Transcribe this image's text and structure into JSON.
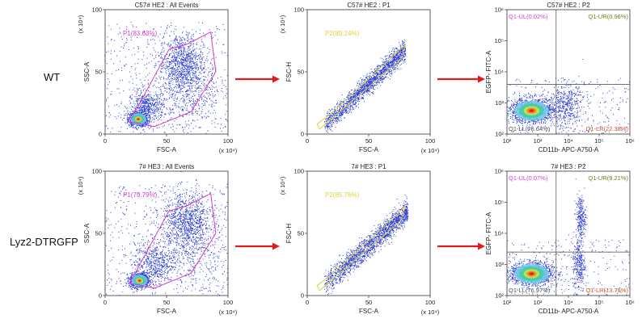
{
  "rows": [
    {
      "label": "WT",
      "panels": [
        {
          "title": "C57# HE2 : All Events",
          "xlabel": "FSC-A",
          "ylabel": "SSC-A",
          "x_unit": "(x 10⁴)",
          "y_unit": "(x 10⁴)",
          "ticks_x": [
            "0",
            "50",
            "100"
          ],
          "ticks_y": [
            "0",
            "50",
            "100"
          ],
          "gate_label": "P1(83.63%)"
        },
        {
          "title": "C57# HE2 : P1",
          "xlabel": "FSC-A",
          "ylabel": "FSC-H",
          "x_unit": "(x 10⁴)",
          "y_unit": "(x 10⁴)",
          "ticks_x": [
            "0",
            "50",
            "100"
          ],
          "ticks_y": [
            "0",
            "50",
            "100"
          ],
          "gate_label": "P2(89.24%)"
        },
        {
          "title": "C57# HE2 : P2",
          "xlabel": "CD11b- APC-A750-A",
          "ylabel": "EGFP- FITC-A",
          "ticks_x": [
            "10²",
            "10³",
            "10⁴",
            "10⁵",
            "10⁶"
          ],
          "ticks_y": [
            "10²",
            "10³",
            "10⁴",
            "10⁵",
            "10⁶"
          ],
          "quadrants": {
            "ul": "Q1-UL(0.02%)",
            "ur": "Q1-UR(0.96%)",
            "ll": "Q1-LL(76.64%)",
            "lr": "Q1-LR(22.38%)"
          }
        }
      ]
    },
    {
      "label": "Lyz2-DTRGFP",
      "panels": [
        {
          "title": "7# HE3 : All Events",
          "xlabel": "FSC-A",
          "ylabel": "SSC-A",
          "x_unit": "(x 10⁴)",
          "y_unit": "(x 10⁴)",
          "ticks_x": [
            "0",
            "50",
            "100"
          ],
          "ticks_y": [
            "0",
            "50",
            "100"
          ],
          "gate_label": "P1(79.79%)"
        },
        {
          "title": "7# HE3 : P1",
          "xlabel": "FSC-A",
          "ylabel": "FSC-H",
          "x_unit": "(x 10⁴)",
          "y_unit": "(x 10⁴)",
          "ticks_x": [
            "0",
            "50",
            "100"
          ],
          "ticks_y": [
            "0",
            "50",
            "100"
          ],
          "gate_label": "P2(85.76%)"
        },
        {
          "title": "7# HE3 : P2",
          "xlabel": "CD11b- APC-A750-A",
          "ylabel": "EGFP- FITC-A",
          "ticks_x": [
            "10²",
            "10³",
            "10⁴",
            "10⁵",
            "10⁶"
          ],
          "ticks_y": [
            "10²",
            "10³",
            "10⁴",
            "10⁵",
            "10⁶"
          ],
          "quadrants": {
            "ul": "Q1-UL(0.07%)",
            "ur": "Q1-UR(9.21%)",
            "ll": "Q1-LL(76.97%)",
            "lr": "Q1-LR(13.75%)"
          }
        }
      ]
    }
  ],
  "colors": {
    "dots": "#2a3bd6",
    "gate_p1": "#d23fd2",
    "gate_p2": "#d8d23a",
    "arrow": "#e01b1b",
    "quad_ul": "#d23fd2",
    "quad_ur": "#7a7a18",
    "quad_ll": "#505060",
    "quad_lr": "#d0502a"
  },
  "chart_data": [
    {
      "type": "scatter",
      "title": "C57# HE2 : All Events",
      "xlabel": "FSC-A",
      "ylabel": "SSC-A",
      "xlim": [
        0,
        100
      ],
      "ylim": [
        0,
        100
      ],
      "units": "x 10^4",
      "gate": {
        "name": "P1",
        "percent": 83.63,
        "polygon": [
          [
            20,
            10
          ],
          [
            52,
            68
          ],
          [
            66,
            72
          ],
          [
            86,
            82
          ],
          [
            90,
            50
          ],
          [
            70,
            18
          ],
          [
            40,
            6
          ]
        ]
      },
      "clusters": [
        {
          "x": 27,
          "y": 12,
          "sx": 4,
          "sy": 3,
          "n": 900
        },
        {
          "x": 34,
          "y": 22,
          "sx": 7,
          "sy": 6,
          "n": 500
        },
        {
          "x": 62,
          "y": 57,
          "sx": 9,
          "sy": 12,
          "n": 900
        },
        {
          "x": 70,
          "y": 35,
          "sx": 12,
          "sy": 14,
          "n": 450
        }
      ]
    },
    {
      "type": "scatter",
      "title": "C57# HE2 : P1",
      "xlabel": "FSC-A",
      "ylabel": "FSC-H",
      "xlim": [
        0,
        100
      ],
      "ylim": [
        0,
        100
      ],
      "units": "x 10^4",
      "gate": {
        "name": "P2",
        "percent": 89.24,
        "polygon": [
          [
            8,
            8
          ],
          [
            20,
            17
          ],
          [
            80,
            72
          ],
          [
            76,
            60
          ],
          [
            10,
            4
          ]
        ]
      },
      "diagonal_fit": {
        "slope": 0.92,
        "intercept": -6,
        "spread": 4,
        "x_range": [
          14,
          80
        ],
        "n": 1800
      }
    },
    {
      "type": "scatter",
      "title": "C57# HE2 : P2",
      "xlabel": "CD11b- APC-A750-A",
      "ylabel": "EGFP- FITC-A",
      "scale": "log",
      "xlim": [
        2,
        6
      ],
      "ylim": [
        2,
        6
      ],
      "quadrant_x": 3.6,
      "quadrant_y": 3.6,
      "quadrants": {
        "UL": 0.02,
        "UR": 0.96,
        "LL": 76.64,
        "LR": 22.38
      },
      "clusters": [
        {
          "x": 2.8,
          "y": 2.75,
          "sx": 0.35,
          "sy": 0.2,
          "n": 1400
        },
        {
          "x": 3.9,
          "y": 2.9,
          "sx": 0.3,
          "sy": 0.35,
          "n": 450
        }
      ]
    },
    {
      "type": "scatter",
      "title": "7# HE3 : All Events",
      "xlabel": "FSC-A",
      "ylabel": "SSC-A",
      "xlim": [
        0,
        100
      ],
      "ylim": [
        0,
        100
      ],
      "units": "x 10^4",
      "gate": {
        "name": "P1",
        "percent": 79.79,
        "polygon": [
          [
            20,
            10
          ],
          [
            52,
            68
          ],
          [
            66,
            72
          ],
          [
            86,
            82
          ],
          [
            90,
            50
          ],
          [
            70,
            18
          ],
          [
            40,
            6
          ]
        ]
      },
      "clusters": [
        {
          "x": 28,
          "y": 12,
          "sx": 4,
          "sy": 3,
          "n": 900
        },
        {
          "x": 40,
          "y": 26,
          "sx": 8,
          "sy": 8,
          "n": 500
        },
        {
          "x": 66,
          "y": 60,
          "sx": 10,
          "sy": 12,
          "n": 900
        },
        {
          "x": 72,
          "y": 38,
          "sx": 12,
          "sy": 14,
          "n": 400
        }
      ]
    },
    {
      "type": "scatter",
      "title": "7# HE3 : P1",
      "xlabel": "FSC-A",
      "ylabel": "FSC-H",
      "xlim": [
        0,
        100
      ],
      "ylim": [
        0,
        100
      ],
      "units": "x 10^4",
      "gate": {
        "name": "P2",
        "percent": 85.76,
        "polygon": [
          [
            8,
            8
          ],
          [
            20,
            17
          ],
          [
            80,
            72
          ],
          [
            76,
            60
          ],
          [
            10,
            4
          ]
        ]
      },
      "diagonal_fit": {
        "slope": 0.88,
        "intercept": -4,
        "spread": 4.5,
        "x_range": [
          14,
          82
        ],
        "n": 1800
      }
    },
    {
      "type": "scatter",
      "title": "7# HE3 : P2",
      "xlabel": "CD11b- APC-A750-A",
      "ylabel": "EGFP- FITC-A",
      "scale": "log",
      "xlim": [
        2,
        6
      ],
      "ylim": [
        2,
        6
      ],
      "quadrant_x": 3.6,
      "quadrant_y": 3.4,
      "quadrants": {
        "UL": 0.07,
        "UR": 9.21,
        "LL": 76.97,
        "LR": 13.75
      },
      "clusters": [
        {
          "x": 2.8,
          "y": 2.7,
          "sx": 0.35,
          "sy": 0.18,
          "n": 1400
        },
        {
          "x": 4.35,
          "y": 3.0,
          "sx": 0.1,
          "sy": 0.45,
          "n": 300
        },
        {
          "x": 4.4,
          "y": 4.5,
          "sx": 0.08,
          "sy": 0.35,
          "n": 260
        }
      ]
    }
  ]
}
